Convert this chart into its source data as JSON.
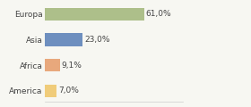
{
  "categories": [
    "Europa",
    "Asia",
    "Africa",
    "America"
  ],
  "values": [
    61.0,
    23.0,
    9.1,
    7.0
  ],
  "labels": [
    "61,0%",
    "23,0%",
    "9,1%",
    "7,0%"
  ],
  "bar_colors": [
    "#adbf8a",
    "#6e8fbf",
    "#e8a87c",
    "#f0cc7a"
  ],
  "background_color": "#f7f7f2",
  "xlim": [
    0,
    85
  ],
  "label_fontsize": 6.5,
  "tick_fontsize": 6.5,
  "bar_height": 0.5
}
